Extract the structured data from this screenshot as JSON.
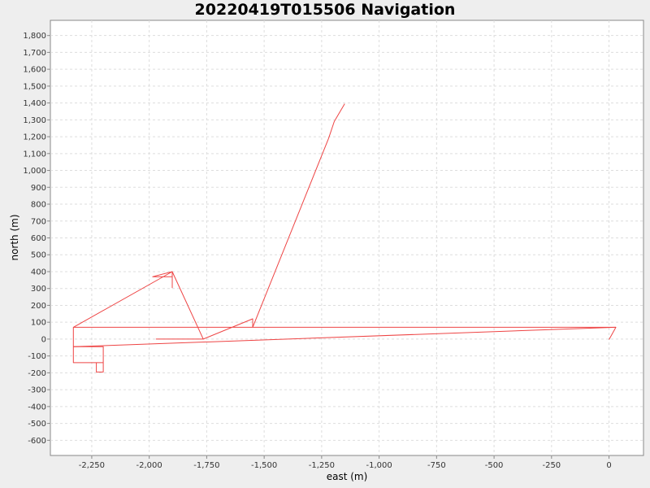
{
  "chart_data": {
    "type": "line",
    "title": "20220419T015506 Navigation",
    "xlabel": "east (m)",
    "ylabel": "north (m)",
    "xlim": [
      -2430,
      150
    ],
    "ylim": [
      -690,
      1890
    ],
    "xticks": [
      -2250,
      -2000,
      -1750,
      -1500,
      -1250,
      -1000,
      -750,
      -500,
      -250,
      0
    ],
    "xtick_labels": [
      "-2,250",
      "-2,000",
      "-1,750",
      "-1,500",
      "-1,250",
      "-1,000",
      "-750",
      "-500",
      "-250",
      "0"
    ],
    "yticks": [
      -600,
      -500,
      -400,
      -300,
      -200,
      -100,
      0,
      100,
      200,
      300,
      400,
      500,
      600,
      700,
      800,
      900,
      1000,
      1100,
      1200,
      1300,
      1400,
      1500,
      1600,
      1700,
      1800
    ],
    "ytick_labels": [
      "-600",
      "-500",
      "-400",
      "-300",
      "-200",
      "-100",
      "0",
      "100",
      "200",
      "300",
      "400",
      "500",
      "600",
      "700",
      "800",
      "900",
      "1,000",
      "1,100",
      "1,200",
      "1,300",
      "1,400",
      "1,500",
      "1,600",
      "1,700",
      "1,800"
    ],
    "grid": true,
    "series": [
      {
        "color": "#ee4444",
        "points": [
          [
            0,
            -3
          ],
          [
            30,
            70
          ],
          [
            -2250,
            70
          ],
          [
            -2200,
            70
          ],
          [
            -2330,
            70
          ],
          [
            -2330,
            -45
          ],
          [
            -2200,
            -45
          ],
          [
            -2200,
            -195
          ],
          [
            -2230,
            -195
          ],
          [
            -2230,
            -140
          ],
          [
            -2200,
            -140
          ],
          [
            -2330,
            -140
          ],
          [
            -2330,
            70
          ],
          [
            -1900,
            400
          ],
          [
            -1900,
            305
          ],
          [
            -1900,
            370
          ],
          [
            -1985,
            370
          ],
          [
            -1900,
            400
          ],
          [
            -1765,
            0
          ],
          [
            -1970,
            0
          ],
          [
            -1765,
            0
          ],
          [
            -1550,
            120
          ],
          [
            -1550,
            70
          ],
          [
            -1220,
            1190
          ],
          [
            -1195,
            1290
          ],
          [
            -1150,
            1395
          ]
        ]
      },
      {
        "color": "#ee4444",
        "points": [
          [
            -2330,
            -45
          ],
          [
            30,
            70
          ]
        ]
      }
    ]
  }
}
